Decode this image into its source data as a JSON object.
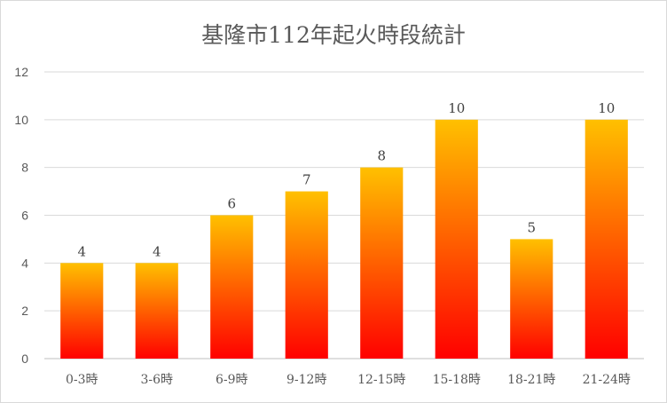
{
  "chart_data": {
    "type": "bar",
    "title": "基隆市112年起火時段統計",
    "xlabel": "",
    "ylabel": "",
    "categories": [
      "0-3時",
      "3-6時",
      "6-9時",
      "9-12時",
      "12-15時",
      "15-18時",
      "18-21時",
      "21-24時"
    ],
    "values": [
      4,
      4,
      6,
      7,
      8,
      10,
      5,
      10
    ],
    "ylim": [
      0,
      12
    ],
    "yticks": [
      0,
      2,
      4,
      6,
      8,
      10,
      12
    ],
    "grid": true,
    "legend": "none",
    "colors": {
      "bar_top": "#ffc000",
      "bar_bottom": "#ff0000",
      "grid": "#d9d9d9",
      "axis": "#bfbfbf"
    }
  }
}
